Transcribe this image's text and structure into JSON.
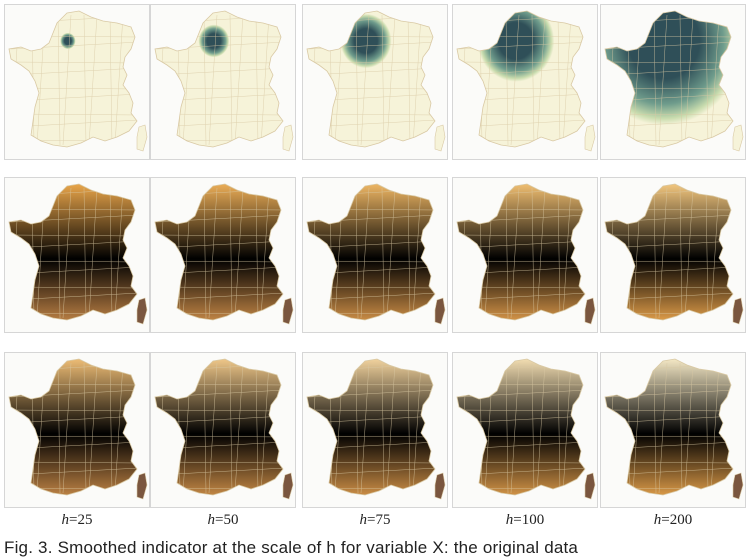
{
  "rows": [
    {
      "id": "row-1",
      "palette": "green"
    },
    {
      "id": "row-2",
      "palette": "orange"
    },
    {
      "id": "row-3",
      "palette": "orange"
    }
  ],
  "columns": [
    {
      "h_prefix": "h",
      "h_value": "=25"
    },
    {
      "h_prefix": "h",
      "h_value": "=50"
    },
    {
      "h_prefix": "h",
      "h_value": "=75"
    },
    {
      "h_prefix": "h",
      "h_value": "=100"
    },
    {
      "h_prefix": "h",
      "h_value": "=200"
    }
  ],
  "caption": "Fig. 3. Smoothed indicator at the scale of h for variable X: the original data",
  "colors": {
    "green_dark": "#2f4f58",
    "green_mid": "#6f9c8c",
    "green_light": "#c9dcae",
    "base_cream": "#f6f3d9",
    "orange_light": "#f8dca0",
    "orange_mid": "#e9a54a",
    "orange_dark": "#8a5a3c",
    "border": "#d9c9a4"
  }
}
